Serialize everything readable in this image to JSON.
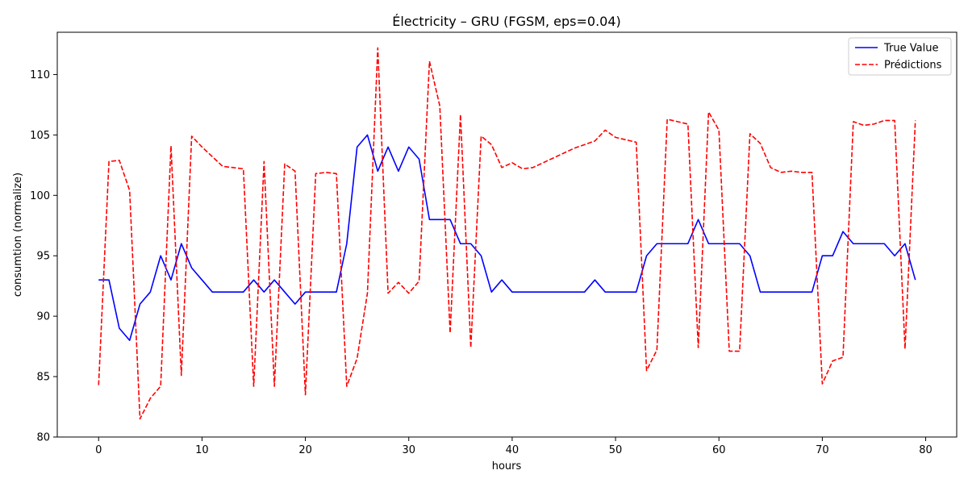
{
  "chart_data": {
    "type": "line",
    "title": "Électricity – GRU (FGSM, eps=0.04)",
    "xlabel": "hours",
    "ylabel": "consumtion (normalize)",
    "xlim": [
      -4,
      83
    ],
    "ylim": [
      80,
      113.5
    ],
    "xticks": [
      0,
      10,
      20,
      30,
      40,
      50,
      60,
      70,
      80
    ],
    "yticks": [
      80,
      85,
      90,
      95,
      100,
      105,
      110
    ],
    "grid": false,
    "legend_position": "top-right",
    "x": [
      0,
      1,
      2,
      3,
      4,
      5,
      6,
      7,
      8,
      9,
      10,
      11,
      12,
      13,
      14,
      15,
      16,
      17,
      18,
      19,
      20,
      21,
      22,
      23,
      24,
      25,
      26,
      27,
      28,
      29,
      30,
      31,
      32,
      33,
      34,
      35,
      36,
      37,
      38,
      39,
      40,
      41,
      42,
      43,
      44,
      45,
      46,
      47,
      48,
      49,
      50,
      51,
      52,
      53,
      54,
      55,
      56,
      57,
      58,
      59,
      60,
      61,
      62,
      63,
      64,
      65,
      66,
      67,
      68,
      69,
      70,
      71,
      72,
      73,
      74,
      75,
      76,
      77,
      78,
      79
    ],
    "series": [
      {
        "name": "True Value",
        "color": "#0000ff",
        "style": "solid",
        "values": [
          93,
          93,
          89,
          88,
          91,
          92,
          95,
          93,
          96,
          94,
          93,
          92,
          92,
          92,
          92,
          93,
          92,
          93,
          92,
          91,
          92,
          92,
          92,
          92,
          96,
          104,
          105,
          102,
          104,
          102,
          104,
          103,
          98,
          98,
          98,
          96,
          96,
          95,
          92,
          93,
          92,
          92,
          92,
          92,
          92,
          92,
          92,
          92,
          93,
          92,
          92,
          92,
          92,
          95,
          96,
          96,
          96,
          96,
          98,
          96,
          96,
          96,
          96,
          95,
          92,
          92,
          92,
          92,
          92,
          92,
          95,
          95,
          97,
          96,
          96,
          96,
          96,
          95,
          96,
          93
        ]
      },
      {
        "name": "Prédictions",
        "color": "#ff0000",
        "style": "dashed",
        "values": [
          84.3,
          102.8,
          102.9,
          100.4,
          81.5,
          83.2,
          84.2,
          104.1,
          85.1,
          104.9,
          104.0,
          103.2,
          102.4,
          102.3,
          102.2,
          84.2,
          102.8,
          84.2,
          102.6,
          102.0,
          83.5,
          101.8,
          101.9,
          101.8,
          84.2,
          86.5,
          91.9,
          112.2,
          91.9,
          92.8,
          91.9,
          92.9,
          111.1,
          107.4,
          88.6,
          106.7,
          87.4,
          104.9,
          104.2,
          102.3,
          102.7,
          102.2,
          102.3,
          102.7,
          103.1,
          103.5,
          103.9,
          104.2,
          104.5,
          105.4,
          104.8,
          104.6,
          104.4,
          85.5,
          87.2,
          106.3,
          106.1,
          105.9,
          87.4,
          106.9,
          105.4,
          87.1,
          87.1,
          105.1,
          104.3,
          102.3,
          101.9,
          102.0,
          101.9,
          101.9,
          84.4,
          86.3,
          86.6,
          106.1,
          105.8,
          105.9,
          106.2,
          106.2,
          87.3,
          106.2
        ]
      }
    ]
  }
}
